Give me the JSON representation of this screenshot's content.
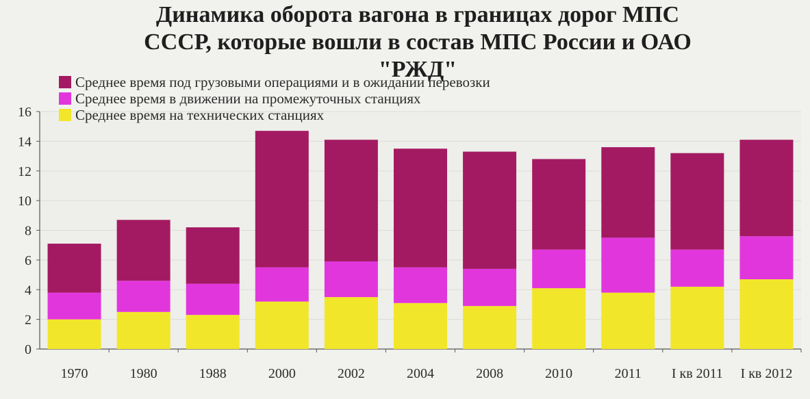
{
  "chart_data": {
    "type": "bar",
    "stacked": true,
    "title": [
      "Динамика оборота вагона в границах дорог МПС",
      "СССР, которые вошли в состав МПС России и ОАО",
      "\"РЖД\""
    ],
    "categories": [
      "1970",
      "1980",
      "1988",
      "2000",
      "2002",
      "2004",
      "2008",
      "2010",
      "2011",
      "I кв 2011",
      "I кв 2012"
    ],
    "series": [
      {
        "name": "Среднее время на технических станциях",
        "color": "#f2e62a",
        "values": [
          2.0,
          2.5,
          2.3,
          3.2,
          3.5,
          3.1,
          2.9,
          4.1,
          3.8,
          4.2,
          4.7
        ]
      },
      {
        "name": "Среднее время в движении на промежуточных станциях",
        "color": "#e236dd",
        "values": [
          1.8,
          2.1,
          2.1,
          2.3,
          2.4,
          2.4,
          2.5,
          2.6,
          3.7,
          2.5,
          2.9
        ]
      },
      {
        "name": "Среднее время под грузовыми операциями и в ожидании перевозки",
        "color": "#a41a62",
        "values": [
          3.3,
          4.1,
          3.8,
          9.2,
          8.2,
          8.0,
          7.9,
          6.1,
          6.1,
          6.5,
          6.5
        ]
      }
    ],
    "legend_order": [
      2,
      1,
      0
    ],
    "y_ticks": [
      0,
      2,
      4,
      6,
      8,
      10,
      12,
      14,
      16
    ],
    "ylim": [
      0,
      16
    ],
    "xlabel": "",
    "ylabel": "",
    "legend_position": "top-left"
  }
}
